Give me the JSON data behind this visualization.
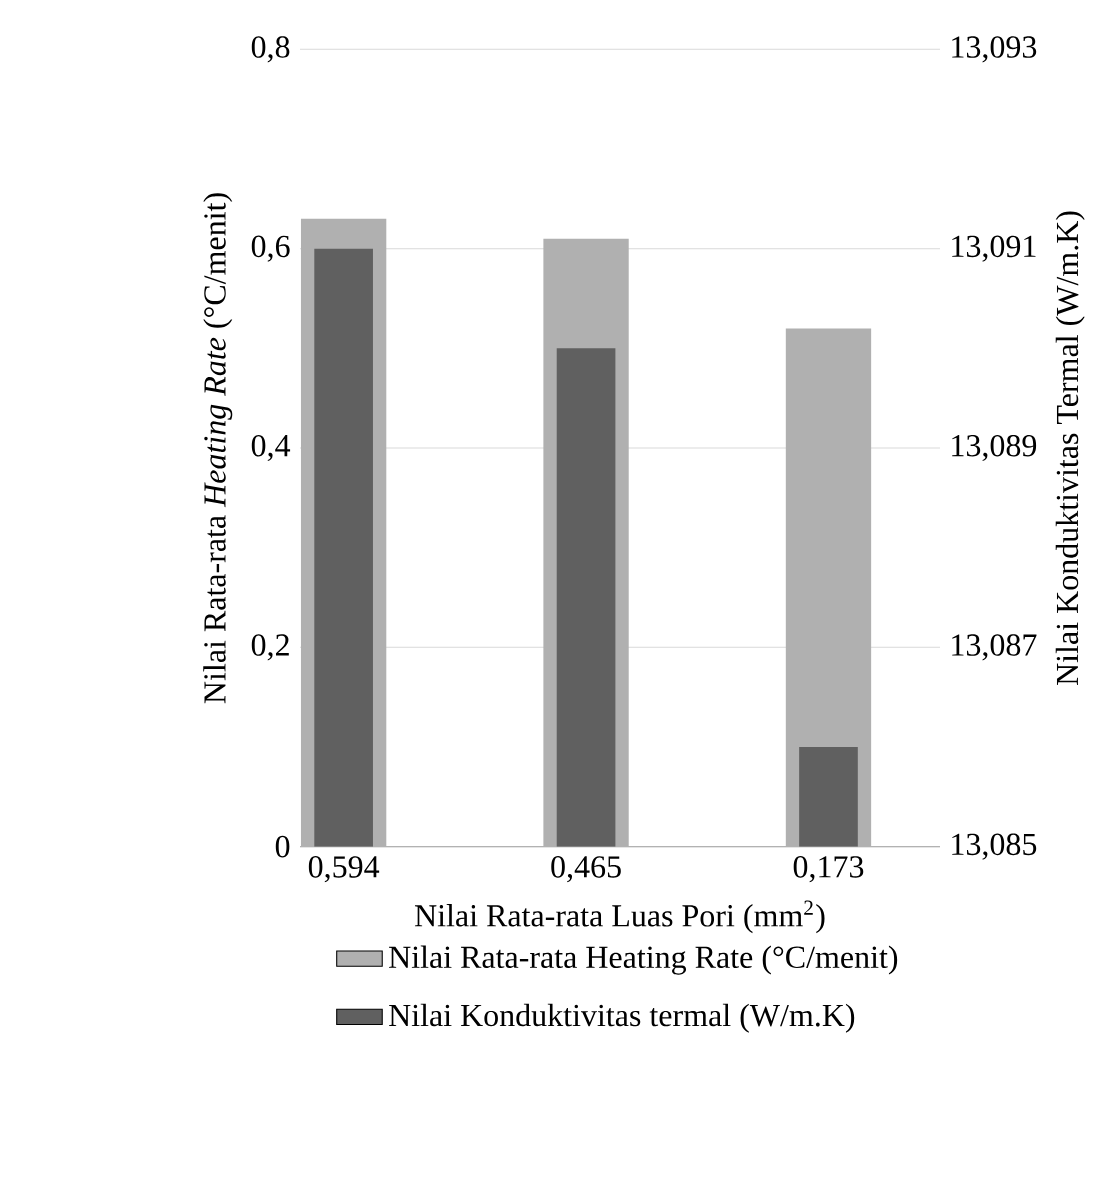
{
  "chart_data": {
    "type": "bar",
    "xlabel": "Nilai Rata-rata Luas Pori (mm$^{2}$)",
    "ylabel": "Nilai Rata-rata *Heating Rate* (°C/menit)",
    "y2label": "Nilai Konduktivitas Termal (W/m.K)",
    "categories": [
      "0,594",
      "0,465",
      "0,173"
    ],
    "series": [
      {
        "name": "Nilai Rata-rata Heating Rate (°C/menit)",
        "color": "#b0b0b0",
        "values": [
          0.63,
          0.61,
          0.52
        ]
      },
      {
        "name": "Nilai Konduktivitas termal (W/m.K)",
        "color": "#606060",
        "values": [
          13.091,
          13.09,
          13.086
        ],
        "axis": "y2"
      }
    ],
    "ylim": [
      0,
      0.8
    ],
    "yticks": [
      {
        "value": 0,
        "label": "0"
      },
      {
        "value": 0.2,
        "label": "0,2"
      },
      {
        "value": 0.4,
        "label": "0,4"
      },
      {
        "value": 0.6,
        "label": "0,6"
      },
      {
        "value": 0.8,
        "label": "0,8"
      }
    ],
    "y2lim": [
      13.085,
      13.093
    ],
    "y2ticks": [
      {
        "value": 13.085,
        "label": "13,085"
      },
      {
        "value": 13.087,
        "label": "13,087"
      },
      {
        "value": 13.089,
        "label": "13,089"
      },
      {
        "value": 13.091,
        "label": "13,091"
      },
      {
        "value": 13.093,
        "label": "13,093"
      }
    ],
    "grid": "y",
    "legend": "bottom"
  }
}
